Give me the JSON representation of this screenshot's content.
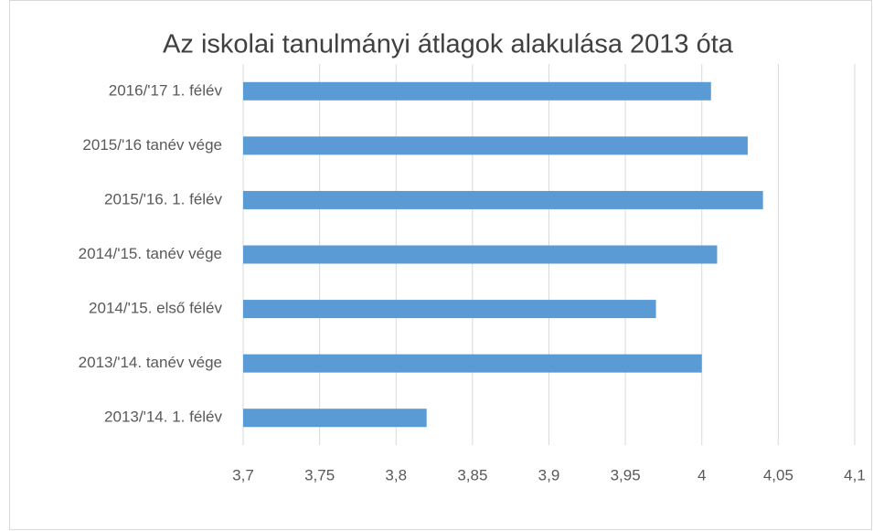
{
  "chart_data": {
    "type": "bar",
    "orientation": "horizontal",
    "title": "Az iskolai tanulmányi átlagok alakulása 2013 óta",
    "categories": [
      "2016/'17 1. félév",
      "2015/'16 tanév vége",
      "2015/'16. 1. félév",
      "2014/'15. tanév vége",
      "2014/'15. első félév",
      "2013/'14. tanév vége",
      "2013/'14. 1. félév"
    ],
    "values": [
      4.006,
      4.03,
      4.04,
      4.01,
      3.97,
      4.0,
      3.82
    ],
    "color": "#5b9bd5",
    "xlim": [
      3.7,
      4.1
    ],
    "xticks": [
      {
        "value": 3.7,
        "label": "3,7"
      },
      {
        "value": 3.75,
        "label": "3,75"
      },
      {
        "value": 3.8,
        "label": "3,8"
      },
      {
        "value": 3.85,
        "label": "3,85"
      },
      {
        "value": 3.9,
        "label": "3,9"
      },
      {
        "value": 3.95,
        "label": "3,95"
      },
      4,
      {
        "value": 4.05,
        "label": "4,05"
      },
      {
        "value": 4.1,
        "label": "4,1"
      }
    ],
    "grid": true
  }
}
